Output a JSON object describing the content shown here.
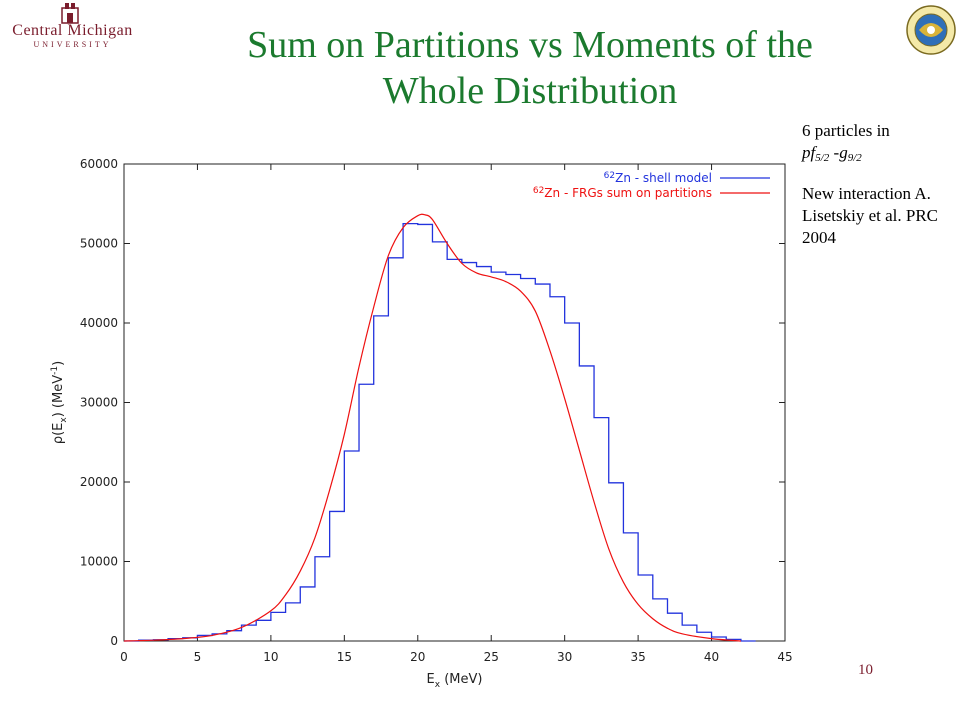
{
  "header": {
    "title_line1": "Sum on Partitions vs Moments of the",
    "title_line2": "Whole Distribution",
    "institution_name": "Central Michigan",
    "institution_sub": "UNIVERSITY",
    "nsf_logo_icon": "nsf-seal-icon"
  },
  "side_note": {
    "line1": "6 particles in",
    "orbit_a": "pf",
    "orbit_a_sub": "5/2",
    "orbit_sep": " -",
    "orbit_b": "g",
    "orbit_b_sub": "9/2",
    "para2": "New interaction A. Lisetskiy et al. PRC 2004"
  },
  "page_number": "10",
  "colors": {
    "title": "#1b7a2e",
    "blue_series": "#2233dd",
    "red_series": "#ee1111",
    "maroon": "#7a1c2c"
  },
  "chart_data": {
    "type": "line",
    "xlabel": "E_x (MeV)",
    "ylabel": "ρ(E_x) (MeV^-1)",
    "xlim": [
      0,
      45
    ],
    "ylim": [
      0,
      60000
    ],
    "x_ticks": [
      0,
      5,
      10,
      15,
      20,
      25,
      30,
      35,
      40,
      45
    ],
    "y_ticks": [
      0,
      10000,
      20000,
      30000,
      40000,
      50000,
      60000
    ],
    "legend_position": "top-right",
    "series": [
      {
        "name": "62Zn - shell model",
        "style": "step",
        "color": "#2233dd",
        "bin_width": 1,
        "x_start": 0,
        "values": [
          0,
          100,
          150,
          300,
          400,
          700,
          900,
          1300,
          2000,
          2600,
          3600,
          4800,
          6800,
          10600,
          16300,
          23900,
          32300,
          40900,
          48200,
          52500,
          52400,
          50200,
          48000,
          47600,
          47100,
          46400,
          46100,
          45600,
          44900,
          43300,
          40000,
          34600,
          28100,
          19900,
          13600,
          8300,
          5300,
          3500,
          2000,
          1100,
          500,
          200,
          0
        ]
      },
      {
        "name": "62Zn - FRGs sum on partitions",
        "style": "line",
        "color": "#ee1111",
        "x": [
          0,
          2,
          4,
          6,
          8,
          10,
          11,
          12,
          13,
          14,
          15,
          16,
          17,
          18,
          19,
          20,
          20.5,
          21,
          22,
          23,
          24,
          25,
          26,
          27,
          28,
          29,
          30,
          31,
          32,
          33,
          34,
          35,
          36,
          37,
          38,
          40,
          42
        ],
        "y": [
          0,
          100,
          300,
          700,
          1700,
          3800,
          5800,
          8800,
          13000,
          19000,
          26000,
          34500,
          42000,
          48500,
          52000,
          53500,
          53600,
          53000,
          50000,
          47500,
          46300,
          45800,
          45200,
          44000,
          41500,
          36500,
          30500,
          24000,
          17500,
          11600,
          7400,
          4600,
          2800,
          1600,
          900,
          300,
          0
        ]
      }
    ]
  }
}
